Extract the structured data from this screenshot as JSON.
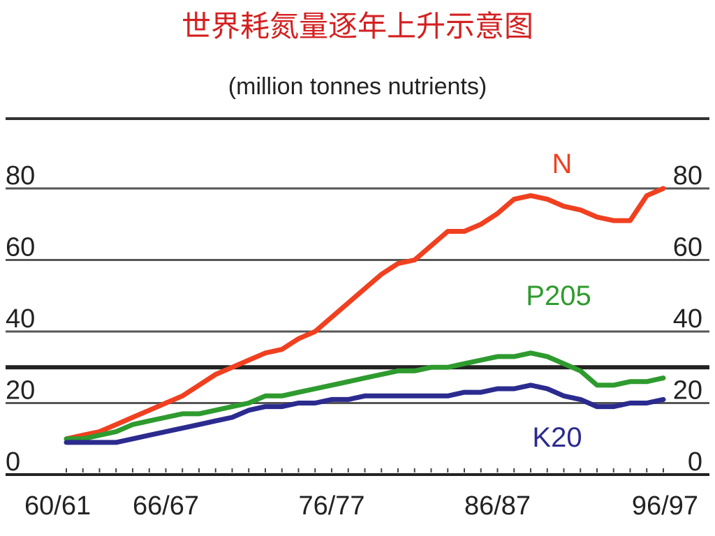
{
  "title": "世界耗氮量逐年上升示意图",
  "subtitle": "(million tonnes nutrients)",
  "chart_data": {
    "type": "line",
    "ylim": [
      0,
      80
    ],
    "xlim": [
      1960,
      1996
    ],
    "yticks": [
      0,
      20,
      40,
      60,
      80
    ],
    "xtick_labels": [
      {
        "x": 1960,
        "label": "60/61"
      },
      {
        "x": 1966,
        "label": "66/67"
      },
      {
        "x": 1976,
        "label": "76/77"
      },
      {
        "x": 1986,
        "label": "86/87"
      },
      {
        "x": 1996,
        "label": "96/97"
      }
    ],
    "x": [
      1960,
      1961,
      1962,
      1963,
      1964,
      1965,
      1966,
      1967,
      1968,
      1969,
      1970,
      1971,
      1972,
      1973,
      1974,
      1975,
      1976,
      1977,
      1978,
      1979,
      1980,
      1981,
      1982,
      1983,
      1984,
      1985,
      1986,
      1987,
      1988,
      1989,
      1990,
      1991,
      1992,
      1993,
      1994,
      1995,
      1996
    ],
    "series": [
      {
        "name": "N",
        "color": "#f04020",
        "values": [
          10,
          11,
          12,
          14,
          16,
          18,
          20,
          22,
          25,
          28,
          30,
          32,
          34,
          35,
          38,
          40,
          44,
          48,
          52,
          56,
          59,
          60,
          64,
          68,
          68,
          70,
          73,
          77,
          78,
          77,
          75,
          74,
          72,
          71,
          71,
          78,
          80
        ]
      },
      {
        "name": "P205",
        "color": "#2e9b2e",
        "values": [
          10,
          10,
          11,
          12,
          14,
          15,
          16,
          17,
          17,
          18,
          19,
          20,
          22,
          22,
          23,
          24,
          25,
          26,
          27,
          28,
          29,
          29,
          30,
          30,
          31,
          32,
          33,
          33,
          34,
          33,
          31,
          29,
          25,
          25,
          26,
          26,
          27
        ]
      },
      {
        "name": "K20",
        "color": "#2b2b8f",
        "values": [
          9,
          9,
          9,
          9,
          10,
          11,
          12,
          13,
          14,
          15,
          16,
          18,
          19,
          19,
          20,
          20,
          21,
          21,
          22,
          22,
          22,
          22,
          22,
          22,
          23,
          23,
          24,
          24,
          25,
          24,
          22,
          21,
          19,
          19,
          20,
          20,
          21
        ]
      }
    ]
  }
}
